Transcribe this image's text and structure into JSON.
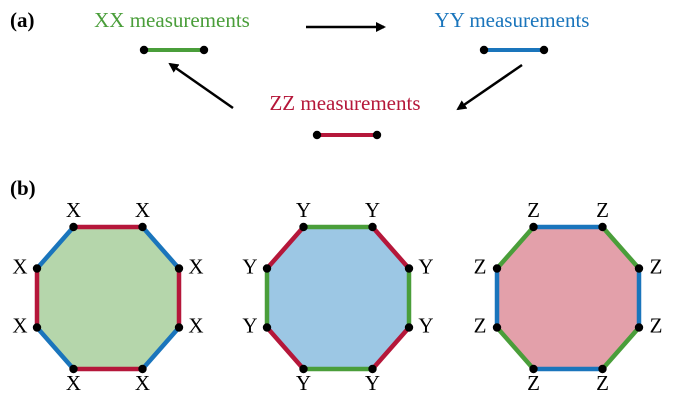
{
  "panel_a": {
    "label": "(a)",
    "measurements": [
      {
        "label": "XX measurements",
        "color": "#4a9e3a"
      },
      {
        "label": "YY measurements",
        "color": "#1a75bc"
      },
      {
        "label": "ZZ measurements",
        "color": "#b5173a"
      }
    ]
  },
  "panel_b": {
    "label": "(b)",
    "octagons": [
      {
        "vertex_labels": [
          "X",
          "X",
          "X",
          "X",
          "X",
          "X",
          "X",
          "X"
        ],
        "fill": "#b5d6ab",
        "edge_colors": [
          "#b5173a",
          "#1a75bc",
          "#b5173a",
          "#1a75bc",
          "#b5173a",
          "#1a75bc",
          "#b5173a",
          "#1a75bc"
        ]
      },
      {
        "vertex_labels": [
          "Y",
          "Y",
          "Y",
          "Y",
          "Y",
          "Y",
          "Y",
          "Y"
        ],
        "fill": "#9cc7e4",
        "edge_colors": [
          "#4a9e3a",
          "#b5173a",
          "#4a9e3a",
          "#b5173a",
          "#4a9e3a",
          "#b5173a",
          "#4a9e3a",
          "#b5173a"
        ]
      },
      {
        "vertex_labels": [
          "Z",
          "Z",
          "Z",
          "Z",
          "Z",
          "Z",
          "Z",
          "Z"
        ],
        "fill": "#e3a0aa",
        "edge_colors": [
          "#1a75bc",
          "#4a9e3a",
          "#1a75bc",
          "#4a9e3a",
          "#1a75bc",
          "#4a9e3a",
          "#1a75bc",
          "#4a9e3a"
        ]
      }
    ]
  }
}
